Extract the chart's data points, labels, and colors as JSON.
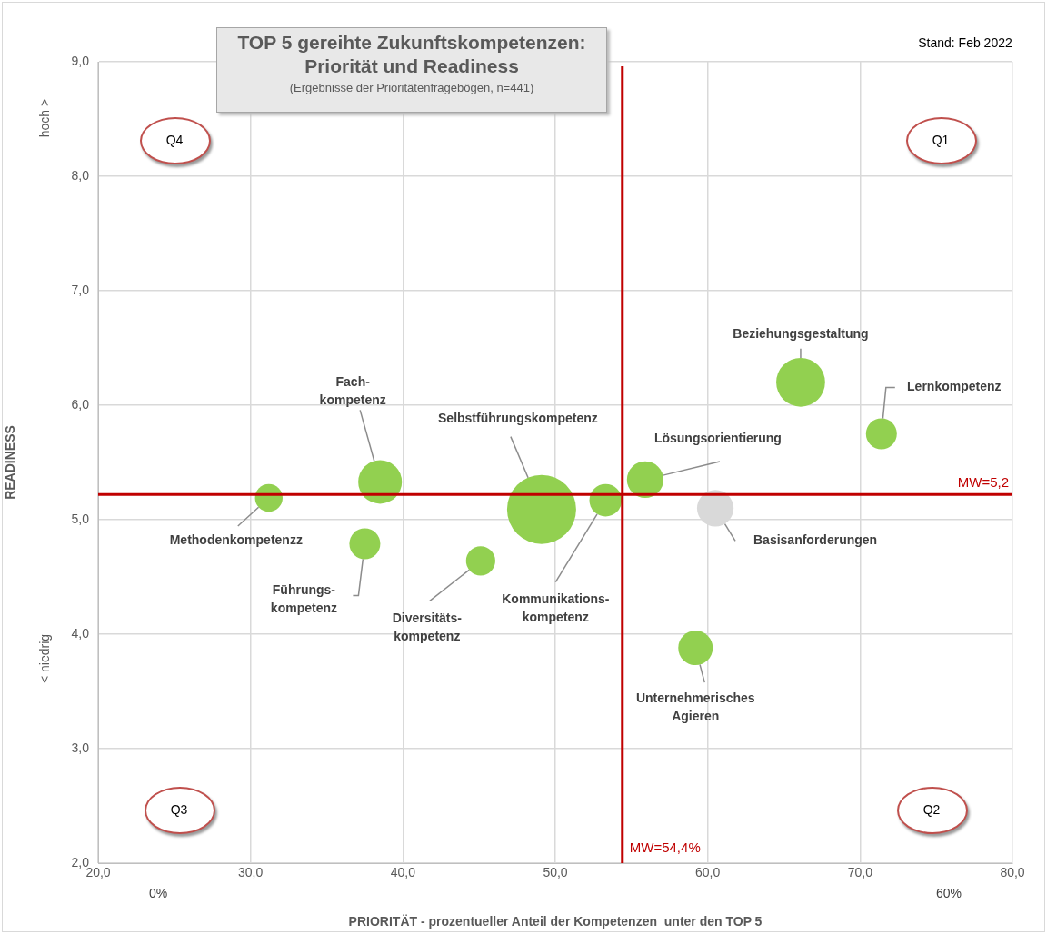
{
  "chart_data": {
    "type": "bubble",
    "title": "TOP 5 gereihte Zukunftskompetenzen:\nPriorität und Readiness",
    "subtitle": "(Ergebnisse der Prioritätenfragebögen,  n=441)",
    "xlabel": "PRIORITÄT - prozentueller Anteil der Kompetenzen  unter den TOP 5",
    "ylabel": "READINESS",
    "xlim": [
      20,
      80
    ],
    "xticks": [
      {
        "value": 20,
        "label": "20,0"
      },
      {
        "value": 30,
        "label": "30,0"
      },
      {
        "value": 40,
        "label": "40,0"
      },
      {
        "value": 50,
        "label": "50,0"
      },
      {
        "value": 60,
        "label": "60,0"
      },
      {
        "value": 70,
        "label": "70,0"
      },
      {
        "value": 80,
        "label": "80,0"
      }
    ],
    "ylim": [
      2,
      9
    ],
    "yticks": [
      {
        "value": 2,
        "label": "2,0"
      },
      {
        "value": 3,
        "label": "3,0"
      },
      {
        "value": 4,
        "label": "4,0"
      },
      {
        "value": 5,
        "label": "5,0"
      },
      {
        "value": 6,
        "label": "6,0"
      },
      {
        "value": 7,
        "label": "7,0"
      },
      {
        "value": 8,
        "label": "8,0"
      },
      {
        "value": 9,
        "label": "9,0"
      }
    ],
    "grid": true,
    "legend": false,
    "series": [
      {
        "name": "Methodenkompetenzz",
        "color": "#92d050",
        "x": [
          31.2
        ],
        "values": [
          5.19
        ],
        "sizes": [
          0.16
        ]
      },
      {
        "name": "Fach-\nkompetenz",
        "color": "#92d050",
        "x": [
          38.5
        ],
        "values": [
          5.33
        ],
        "sizes": [
          0.4
        ]
      },
      {
        "name": "Führungs-\nkompetenz",
        "color": "#92d050",
        "x": [
          37.5
        ],
        "values": [
          4.79
        ],
        "sizes": [
          0.2
        ]
      },
      {
        "name": "Diversitäts-\nkompetenz",
        "color": "#92d050",
        "x": [
          45.1
        ],
        "values": [
          4.64
        ],
        "sizes": [
          0.18
        ]
      },
      {
        "name": "Selbstführungskompetenz",
        "color": "#92d050",
        "x": [
          49.1
        ],
        "values": [
          5.09
        ],
        "sizes": [
          1
        ]
      },
      {
        "name": "Kommunikations-\nkompetenz",
        "color": "#92d050",
        "x": [
          53.3
        ],
        "values": [
          5.17
        ],
        "sizes": [
          0.22
        ]
      },
      {
        "name": "Lösungsorientierung",
        "color": "#92d050",
        "x": [
          55.9
        ],
        "values": [
          5.35
        ],
        "sizes": [
          0.28
        ]
      },
      {
        "name": "Basisanforderungen",
        "color": "#d9d9d9",
        "x": [
          60.5
        ],
        "values": [
          5.1
        ],
        "sizes": [
          0.28
        ]
      },
      {
        "name": "Beziehungsgestaltung",
        "color": "#92d050",
        "x": [
          66.1
        ],
        "values": [
          6.2
        ],
        "sizes": [
          0.5
        ]
      },
      {
        "name": "Lernkompetenz",
        "color": "#92d050",
        "x": [
          71.4
        ],
        "values": [
          5.75
        ],
        "sizes": [
          0.2
        ]
      },
      {
        "name": "Unternehmerisches\nAgieren",
        "color": "#92d050",
        "x": [
          59.2
        ],
        "values": [
          3.88
        ],
        "sizes": [
          0.25
        ]
      }
    ],
    "ref_lines": [
      {
        "axis": "x",
        "value": 54.4,
        "label": "MW=54,4%",
        "color": "#c00000"
      },
      {
        "axis": "y",
        "value": 5.22,
        "label": "MW=5,2",
        "color": "#c00000"
      }
    ],
    "annotations": [
      "Stand: Feb 2022",
      "Q4",
      "Q1",
      "Q3",
      "Q2",
      "0%",
      "60%",
      "hoch >",
      "< niedrig"
    ]
  }
}
